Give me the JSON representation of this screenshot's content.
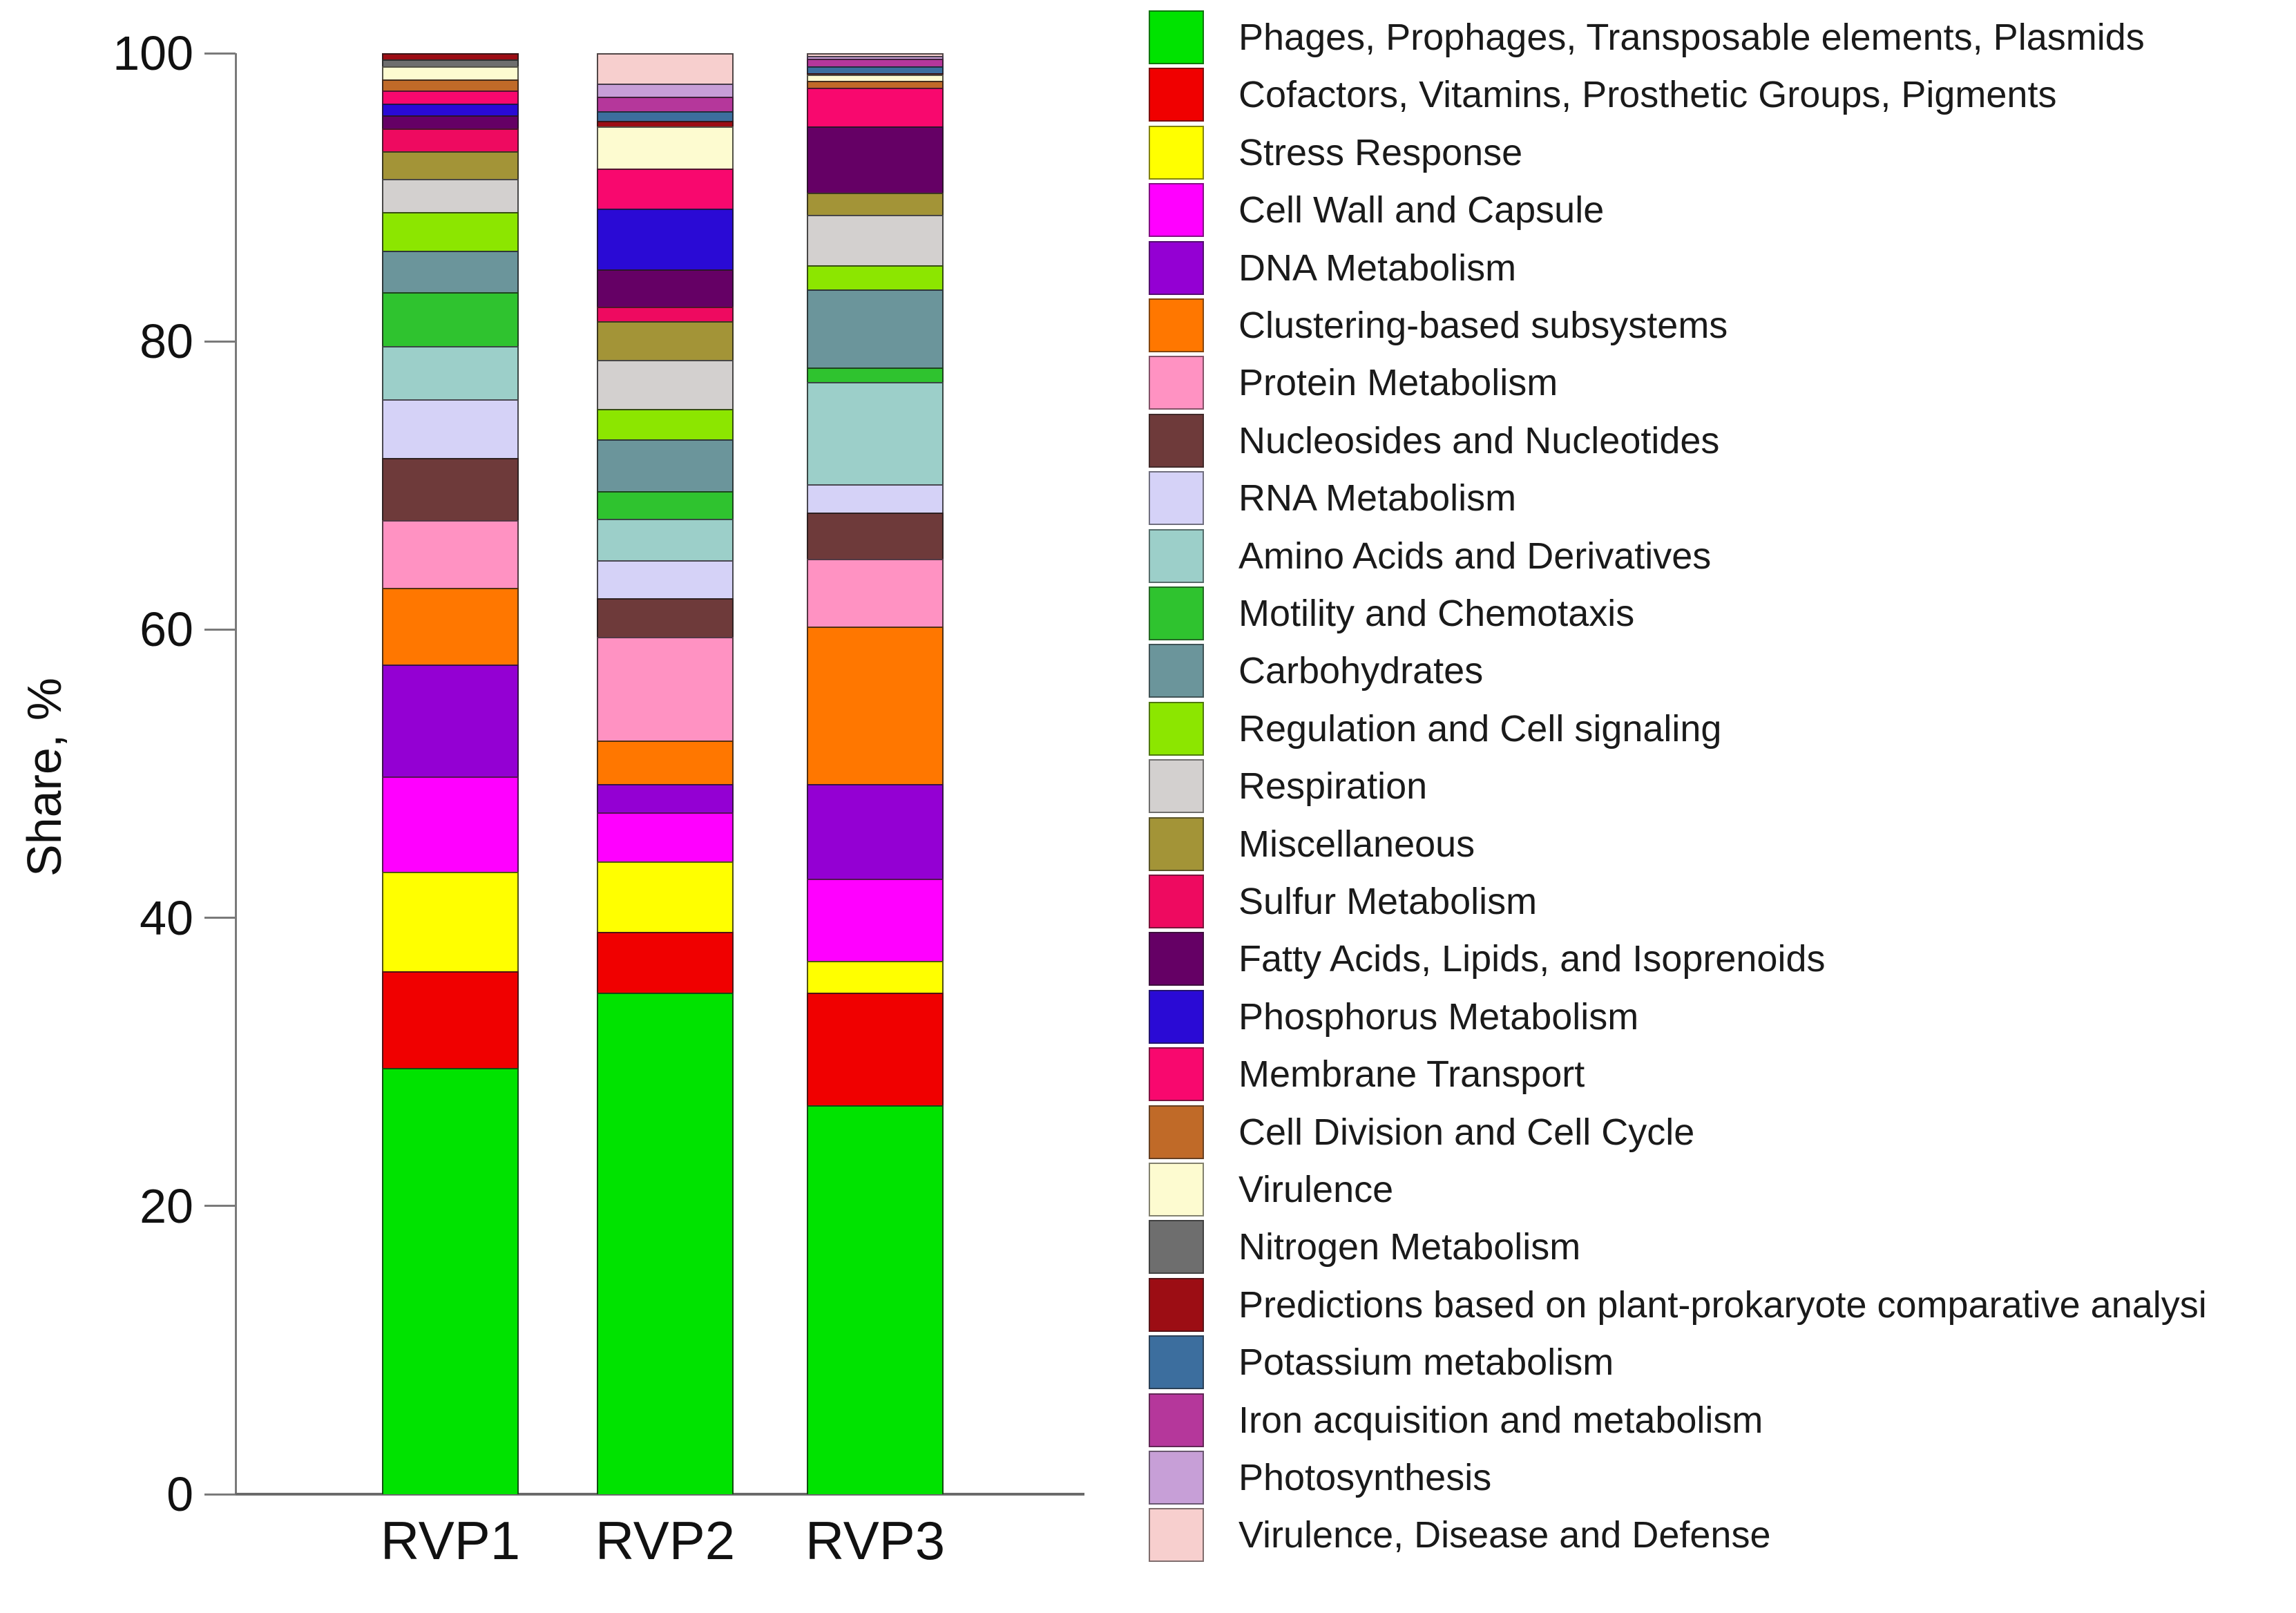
{
  "chart_data": {
    "type": "bar",
    "stacked": true,
    "title": "",
    "xlabel": "",
    "ylabel": "Share, %",
    "ylim": [
      0,
      100
    ],
    "yticks": [
      0,
      20,
      40,
      60,
      80,
      100
    ],
    "grid": false,
    "legend_position": "right",
    "categories": [
      "RVP1",
      "RVP2",
      "RVP3"
    ],
    "series": [
      {
        "name": "Phages, Prophages, Transposable elements, Plasmids",
        "color": "#00E300",
        "values": [
          29.6,
          34.8,
          27.0
        ]
      },
      {
        "name": "Cofactors, Vitamins, Prosthetic Groups, Pigments",
        "color": "#F00000",
        "values": [
          6.7,
          4.2,
          7.8
        ]
      },
      {
        "name": "Stress Response",
        "color": "#FFFF00",
        "values": [
          6.9,
          4.9,
          2.2
        ]
      },
      {
        "name": "Cell Wall and Capsule",
        "color": "#FF00FF",
        "values": [
          6.6,
          3.4,
          5.7
        ]
      },
      {
        "name": "DNA Metabolism",
        "color": "#9400D3",
        "values": [
          7.8,
          2.0,
          6.6
        ]
      },
      {
        "name": "Clustering-based subsystems",
        "color": "#FF7700",
        "values": [
          5.3,
          3.0,
          10.9
        ]
      },
      {
        "name": "Protein Metabolism",
        "color": "#FF92C2",
        "values": [
          4.7,
          7.2,
          4.7
        ]
      },
      {
        "name": "Nucleosides and Nucleotides",
        "color": "#6E3A3A",
        "values": [
          4.3,
          2.7,
          3.2
        ]
      },
      {
        "name": "RNA Metabolism",
        "color": "#D5D2F7",
        "values": [
          4.1,
          2.6,
          2.0
        ]
      },
      {
        "name": "Amino Acids and Derivatives",
        "color": "#9CCFC9",
        "values": [
          3.7,
          2.9,
          7.1
        ]
      },
      {
        "name": "Motility and Chemotaxis",
        "color": "#2FC32F",
        "values": [
          3.7,
          1.9,
          1.0
        ]
      },
      {
        "name": "Carbohydrates",
        "color": "#6B959B",
        "values": [
          2.9,
          3.6,
          5.4
        ]
      },
      {
        "name": "Regulation and Cell signaling",
        "color": "#8CE600",
        "values": [
          2.7,
          2.1,
          1.7
        ]
      },
      {
        "name": "Respiration",
        "color": "#D3D0CF",
        "values": [
          2.3,
          3.4,
          3.5
        ]
      },
      {
        "name": "Miscellaneous",
        "color": "#A39437",
        "values": [
          1.9,
          2.7,
          1.5
        ]
      },
      {
        "name": "Sulfur Metabolism",
        "color": "#EE0A60",
        "values": [
          1.6,
          1.0,
          0
        ]
      },
      {
        "name": "Fatty Acids, Lipids, and Isoprenoids",
        "color": "#650065",
        "values": [
          0.9,
          2.6,
          4.6
        ]
      },
      {
        "name": "Phosphorus Metabolism",
        "color": "#2A0AD5",
        "values": [
          0.8,
          4.2,
          0
        ]
      },
      {
        "name": "Membrane Transport",
        "color": "#F8086E",
        "values": [
          0.9,
          2.8,
          2.7
        ]
      },
      {
        "name": "Cell Division and Cell Cycle",
        "color": "#C06A28",
        "values": [
          0.8,
          0,
          0.5
        ]
      },
      {
        "name": "Virulence",
        "color": "#FDFBD0",
        "values": [
          0.9,
          2.9,
          0.4
        ]
      },
      {
        "name": "Nitrogen Metabolism",
        "color": "#6E6E6E",
        "values": [
          0.5,
          0,
          0
        ]
      },
      {
        "name": "Predictions based on plant-prokaryote comparative analysi",
        "color": "#9C0D14",
        "values": [
          0.4,
          0.4,
          0.1
        ]
      },
      {
        "name": "Potassium metabolism",
        "color": "#3C6E9E",
        "values": [
          0,
          0.7,
          0.5
        ]
      },
      {
        "name": "Iron acquisition and metabolism",
        "color": "#B5379B",
        "values": [
          0,
          1.0,
          0.5
        ]
      },
      {
        "name": "Photosynthesis",
        "color": "#C79FD7",
        "values": [
          0,
          0.9,
          0.2
        ]
      },
      {
        "name": "Virulence, Disease and Defense",
        "color": "#F7CFCE",
        "values": [
          0,
          2.1,
          0.2
        ]
      }
    ]
  }
}
